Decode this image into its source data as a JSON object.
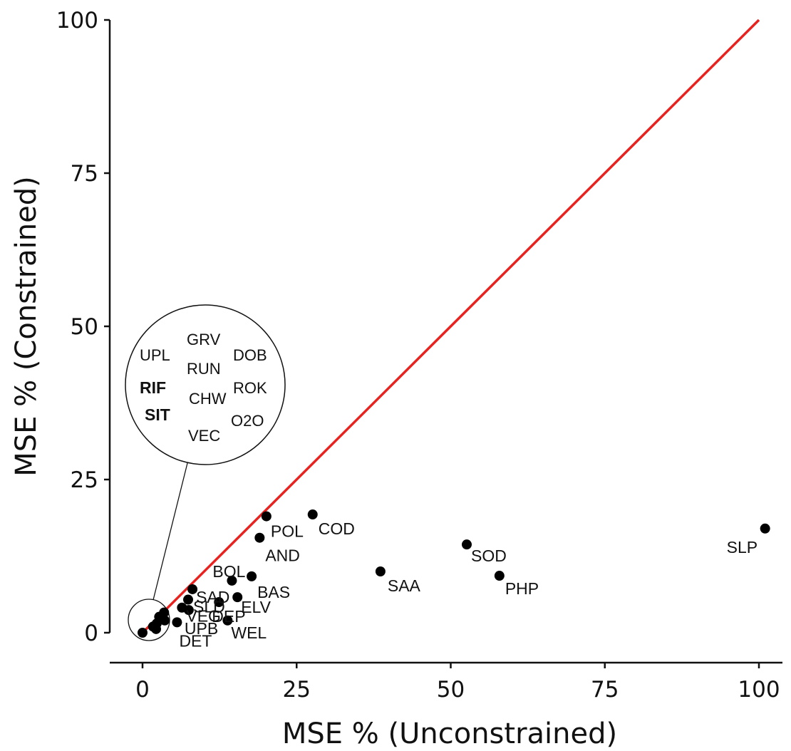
{
  "chart_data": {
    "type": "scatter",
    "xlabel": "MSE % (Unconstrained)",
    "ylabel": "MSE % (Constrained)",
    "xlim": [
      0,
      100
    ],
    "ylim": [
      0,
      100
    ],
    "x_ticks": [
      "0",
      "25",
      "50",
      "75",
      "100"
    ],
    "y_ticks": [
      "0",
      "25",
      "50",
      "75",
      "100"
    ],
    "reference_line": {
      "from": [
        0,
        0
      ],
      "to": [
        100,
        100
      ],
      "color": "#e8231f"
    },
    "marker_color": "#000000",
    "points": [
      {
        "label": "SLP",
        "x": 101.0,
        "y": 17.0
      },
      {
        "label": "PHP",
        "x": 57.9,
        "y": 9.3
      },
      {
        "label": "SOD",
        "x": 52.6,
        "y": 14.4
      },
      {
        "label": "SAA",
        "x": 38.6,
        "y": 10.0
      },
      {
        "label": "COD",
        "x": 27.6,
        "y": 19.3
      },
      {
        "label": "POL",
        "x": 20.1,
        "y": 19.0
      },
      {
        "label": "AND",
        "x": 19.0,
        "y": 15.5
      },
      {
        "label": "BAS",
        "x": 17.7,
        "y": 9.2
      },
      {
        "label": "BOL",
        "x": 14.5,
        "y": 8.5
      },
      {
        "label": "ELV",
        "x": 15.4,
        "y": 5.8
      },
      {
        "label": "DEP",
        "x": 12.4,
        "y": 5.0
      },
      {
        "label": "SAD",
        "x": 8.1,
        "y": 7.1
      },
      {
        "label": "SLD",
        "x": 7.4,
        "y": 5.4
      },
      {
        "label": "VEG",
        "x": 6.4,
        "y": 4.1
      },
      {
        "label": "WEL",
        "x": 13.8,
        "y": 2.0
      },
      {
        "label": "UPB",
        "x": 7.5,
        "y": 3.7
      },
      {
        "label": "DET",
        "x": 5.6,
        "y": 1.7
      },
      {
        "label": "",
        "x": 3.5,
        "y": 3.3
      },
      {
        "label": "",
        "x": 3.6,
        "y": 2.0
      },
      {
        "label": "",
        "x": 2.7,
        "y": 2.6
      },
      {
        "label": "",
        "x": 2.3,
        "y": 1.5
      },
      {
        "label": "",
        "x": 1.7,
        "y": 1.0
      },
      {
        "label": "",
        "x": 2.2,
        "y": 0.6
      },
      {
        "label": "",
        "x": 0.0,
        "y": 0.0
      }
    ],
    "inset": {
      "labels": [
        "GRV",
        "UPL",
        "DOB",
        "RUN",
        "RIF",
        "ROK",
        "CHW",
        "SIT",
        "O2O",
        "VEC"
      ]
    }
  }
}
